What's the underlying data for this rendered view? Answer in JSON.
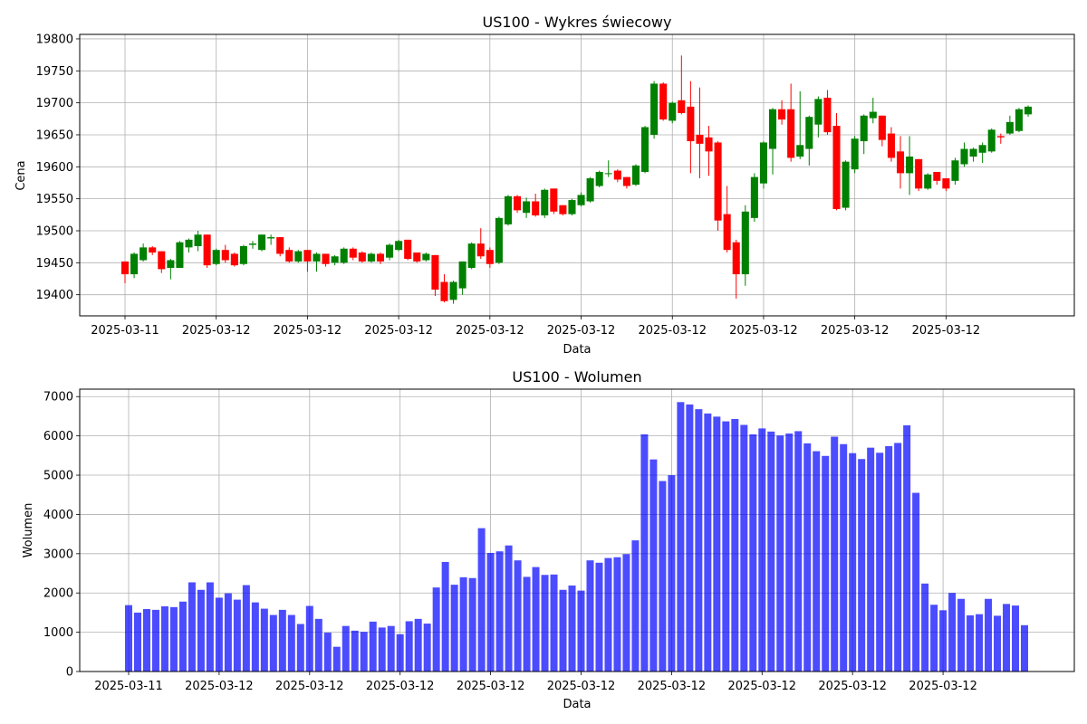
{
  "chart_data": [
    {
      "type": "candlestick",
      "title": "US100 - Wykres świecowy",
      "xlabel": "Data",
      "ylabel": "Cena",
      "ylim": [
        19367,
        19807
      ],
      "yticks": [
        19400,
        19450,
        19500,
        19550,
        19600,
        19650,
        19700,
        19750,
        19800
      ],
      "xtick_labels": [
        "2025-03-11",
        "2025-03-12",
        "2025-03-12",
        "2025-03-12",
        "2025-03-12",
        "2025-03-12",
        "2025-03-12",
        "2025-03-12",
        "2025-03-12",
        "2025-03-12"
      ],
      "grid": true,
      "up_color": "#008000",
      "down_color": "#ff0000",
      "ohlc": [
        [
          19452,
          19452,
          19418,
          19432
        ],
        [
          19432,
          19466,
          19426,
          19464
        ],
        [
          19454,
          19480,
          19452,
          19474
        ],
        [
          19474,
          19476,
          19462,
          19466
        ],
        [
          19468,
          19468,
          19434,
          19440
        ],
        [
          19442,
          19456,
          19424,
          19454
        ],
        [
          19442,
          19484,
          19442,
          19482
        ],
        [
          19474,
          19488,
          19466,
          19486
        ],
        [
          19476,
          19500,
          19468,
          19494
        ],
        [
          19494,
          19494,
          19442,
          19446
        ],
        [
          19448,
          19472,
          19446,
          19470
        ],
        [
          19470,
          19478,
          19450,
          19454
        ],
        [
          19464,
          19466,
          19444,
          19446
        ],
        [
          19448,
          19478,
          19446,
          19476
        ],
        [
          19478,
          19484,
          19472,
          19480
        ],
        [
          19470,
          19494,
          19468,
          19494
        ],
        [
          19488,
          19494,
          19478,
          19490
        ],
        [
          19490,
          19490,
          19460,
          19464
        ],
        [
          19470,
          19474,
          19450,
          19452
        ],
        [
          19452,
          19470,
          19450,
          19468
        ],
        [
          19470,
          19470,
          19436,
          19452
        ],
        [
          19452,
          19466,
          19436,
          19464
        ],
        [
          19464,
          19464,
          19444,
          19448
        ],
        [
          19450,
          19462,
          19446,
          19460
        ],
        [
          19450,
          19474,
          19448,
          19472
        ],
        [
          19472,
          19474,
          19454,
          19458
        ],
        [
          19466,
          19468,
          19450,
          19452
        ],
        [
          19452,
          19466,
          19450,
          19464
        ],
        [
          19464,
          19466,
          19448,
          19452
        ],
        [
          19458,
          19480,
          19454,
          19478
        ],
        [
          19470,
          19486,
          19468,
          19484
        ],
        [
          19486,
          19486,
          19454,
          19456
        ],
        [
          19466,
          19466,
          19450,
          19452
        ],
        [
          19454,
          19466,
          19452,
          19464
        ],
        [
          19462,
          19462,
          19398,
          19408
        ],
        [
          19420,
          19432,
          19388,
          19390
        ],
        [
          19392,
          19422,
          19386,
          19420
        ],
        [
          19410,
          19452,
          19400,
          19452
        ],
        [
          19442,
          19482,
          19440,
          19480
        ],
        [
          19480,
          19504,
          19456,
          19460
        ],
        [
          19470,
          19474,
          19442,
          19448
        ],
        [
          19450,
          19522,
          19448,
          19520
        ],
        [
          19510,
          19556,
          19508,
          19554
        ],
        [
          19554,
          19556,
          19528,
          19532
        ],
        [
          19528,
          19552,
          19520,
          19546
        ],
        [
          19546,
          19558,
          19522,
          19524
        ],
        [
          19524,
          19566,
          19520,
          19564
        ],
        [
          19566,
          19566,
          19526,
          19530
        ],
        [
          19540,
          19540,
          19524,
          19526
        ],
        [
          19526,
          19550,
          19524,
          19548
        ],
        [
          19540,
          19560,
          19538,
          19556
        ],
        [
          19546,
          19584,
          19544,
          19582
        ],
        [
          19570,
          19594,
          19568,
          19592
        ],
        [
          19590,
          19610,
          19584,
          19590
        ],
        [
          19594,
          19596,
          19576,
          19580
        ],
        [
          19584,
          19584,
          19566,
          19570
        ],
        [
          19572,
          19604,
          19570,
          19602
        ],
        [
          19592,
          19664,
          19590,
          19662
        ],
        [
          19650,
          19734,
          19644,
          19730
        ],
        [
          19730,
          19732,
          19672,
          19674
        ],
        [
          19672,
          19702,
          19668,
          19700
        ],
        [
          19704,
          19774,
          19682,
          19684
        ],
        [
          19694,
          19734,
          19590,
          19640
        ],
        [
          19650,
          19724,
          19582,
          19636
        ],
        [
          19646,
          19664,
          19586,
          19624
        ],
        [
          19638,
          19640,
          19500,
          19516
        ],
        [
          19526,
          19570,
          19466,
          19470
        ],
        [
          19482,
          19486,
          19394,
          19432
        ],
        [
          19432,
          19540,
          19414,
          19530
        ],
        [
          19520,
          19590,
          19514,
          19584
        ],
        [
          19574,
          19640,
          19566,
          19638
        ],
        [
          19628,
          19692,
          19588,
          19690
        ],
        [
          19690,
          19704,
          19666,
          19674
        ],
        [
          19690,
          19730,
          19608,
          19614
        ],
        [
          19616,
          19718,
          19612,
          19634
        ],
        [
          19628,
          19680,
          19602,
          19678
        ],
        [
          19666,
          19710,
          19646,
          19706
        ],
        [
          19708,
          19720,
          19650,
          19654
        ],
        [
          19664,
          19684,
          19532,
          19534
        ],
        [
          19536,
          19610,
          19532,
          19608
        ],
        [
          19596,
          19648,
          19590,
          19644
        ],
        [
          19640,
          19682,
          19620,
          19680
        ],
        [
          19676,
          19708,
          19668,
          19686
        ],
        [
          19680,
          19680,
          19632,
          19642
        ],
        [
          19652,
          19662,
          19608,
          19614
        ],
        [
          19624,
          19648,
          19566,
          19590
        ],
        [
          19590,
          19648,
          19556,
          19616
        ],
        [
          19612,
          19612,
          19562,
          19566
        ],
        [
          19566,
          19590,
          19564,
          19588
        ],
        [
          19592,
          19592,
          19572,
          19578
        ],
        [
          19582,
          19582,
          19562,
          19566
        ],
        [
          19578,
          19614,
          19572,
          19610
        ],
        [
          19604,
          19638,
          19600,
          19628
        ],
        [
          19616,
          19630,
          19608,
          19628
        ],
        [
          19622,
          19638,
          19606,
          19634
        ],
        [
          19624,
          19660,
          19622,
          19658
        ],
        [
          19648,
          19652,
          19636,
          19646
        ],
        [
          19652,
          19680,
          19650,
          19670
        ],
        [
          19656,
          19692,
          19654,
          19690
        ],
        [
          19682,
          19696,
          19678,
          19694
        ]
      ]
    },
    {
      "type": "bar",
      "title": "US100 - Wolumen",
      "xlabel": "Data",
      "ylabel": "Wolumen",
      "ylim": [
        0,
        7190
      ],
      "yticks": [
        0,
        1000,
        2000,
        3000,
        4000,
        5000,
        6000,
        7000
      ],
      "xtick_labels": [
        "2025-03-11",
        "2025-03-12",
        "2025-03-12",
        "2025-03-12",
        "2025-03-12",
        "2025-03-12",
        "2025-03-12",
        "2025-03-12",
        "2025-03-12",
        "2025-03-12"
      ],
      "grid": true,
      "bar_color": "#0000ff",
      "values": [
        1690,
        1500,
        1590,
        1570,
        1660,
        1640,
        1780,
        2270,
        2080,
        2270,
        1880,
        1990,
        1830,
        2200,
        1760,
        1600,
        1440,
        1570,
        1440,
        1210,
        1670,
        1340,
        990,
        630,
        1160,
        1040,
        1010,
        1270,
        1120,
        1160,
        950,
        1280,
        1340,
        1220,
        2140,
        2790,
        2210,
        2400,
        2380,
        3650,
        3020,
        3060,
        3210,
        2830,
        2410,
        2660,
        2460,
        2470,
        2080,
        2190,
        2060,
        2830,
        2770,
        2890,
        2910,
        2990,
        3340,
        6040,
        5400,
        4850,
        5000,
        6860,
        6800,
        6680,
        6570,
        6490,
        6370,
        6430,
        6280,
        6040,
        6190,
        6110,
        6010,
        6060,
        6120,
        5810,
        5610,
        5490,
        5980,
        5790,
        5560,
        5410,
        5700,
        5570,
        5740,
        5820,
        6270,
        4550,
        2240,
        1700,
        1560,
        2000,
        1850,
        1430,
        1460,
        1850,
        1420,
        1720,
        1680,
        1180
      ]
    }
  ]
}
